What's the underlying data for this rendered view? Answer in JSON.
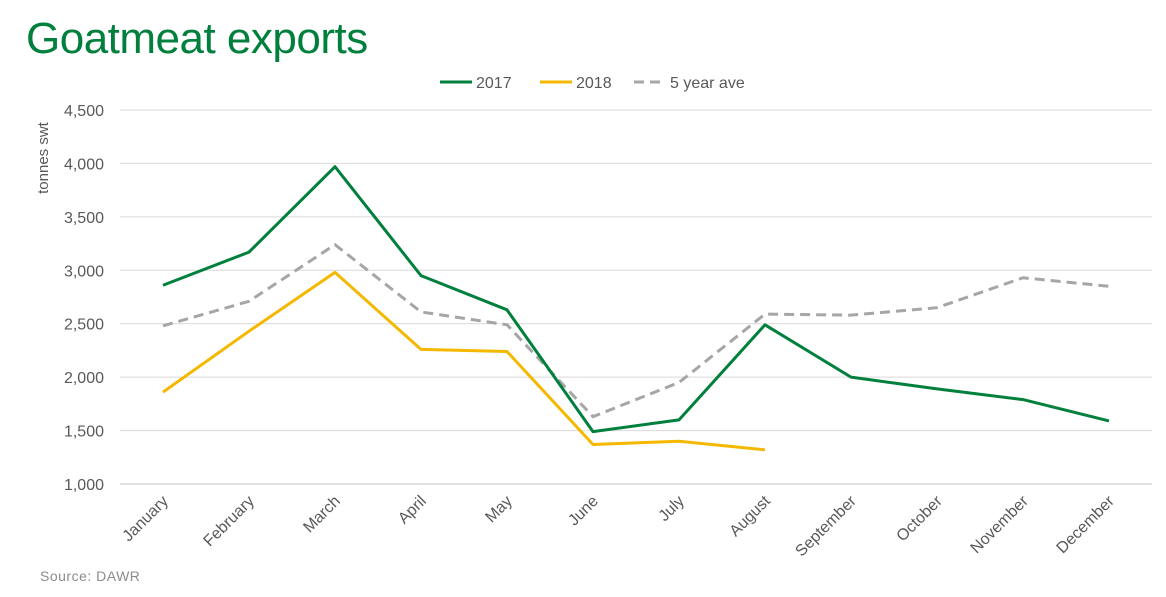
{
  "title": "Goatmeat exports",
  "source": "Source: DAWR",
  "chart_data": {
    "type": "line",
    "title": "Goatmeat exports",
    "ylabel": "tonnes swt",
    "xlabel": "",
    "ylim": [
      1000,
      4500
    ],
    "yticks": [
      1000,
      1500,
      2000,
      2500,
      3000,
      3500,
      4000,
      4500
    ],
    "ytick_labels": [
      "1,000",
      "1,500",
      "2,000",
      "2,500",
      "3,000",
      "3,500",
      "4,000",
      "4,500"
    ],
    "categories": [
      "January",
      "February",
      "March",
      "April",
      "May",
      "June",
      "July",
      "August",
      "September",
      "October",
      "November",
      "December"
    ],
    "legend_position": "top",
    "grid": "horizontal",
    "series": [
      {
        "name": "2017",
        "color": "#00803c",
        "dash": "solid",
        "values": [
          2860,
          3170,
          3970,
          2950,
          2630,
          1490,
          1600,
          2490,
          2000,
          1890,
          1790,
          1590
        ]
      },
      {
        "name": "2018",
        "color": "#f5b800",
        "dash": "solid",
        "values": [
          1860,
          2430,
          2980,
          2260,
          2240,
          1370,
          1400,
          1320,
          null,
          null,
          null,
          null
        ]
      },
      {
        "name": "5 year ave",
        "color": "#a6a6a6",
        "dash": "dashed",
        "values": [
          2480,
          2710,
          3240,
          2610,
          2490,
          1630,
          1950,
          2590,
          2580,
          2650,
          2930,
          2850
        ]
      }
    ]
  }
}
